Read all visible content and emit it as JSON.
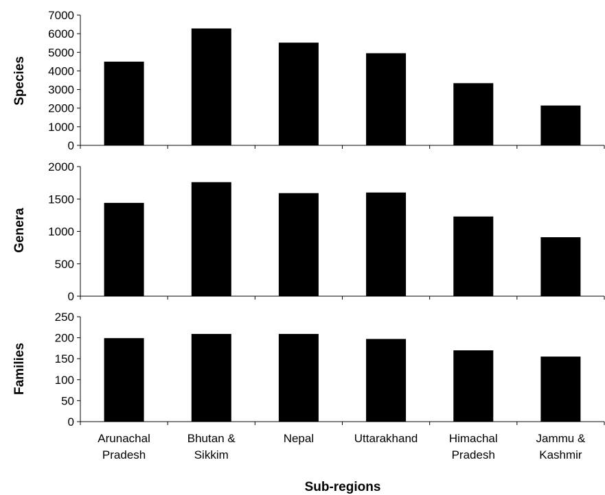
{
  "chart_data": {
    "type": "bar",
    "categories": [
      [
        "Arunachal",
        "Pradesh"
      ],
      [
        "Bhutan &",
        "Sikkim"
      ],
      [
        "Nepal"
      ],
      [
        "Uttarakhand"
      ],
      [
        "Himachal",
        "Pradesh"
      ],
      [
        "Jammu &",
        "Kashmir"
      ]
    ],
    "xlabel": "Sub-regions",
    "bar_color": "#000000",
    "panels": [
      {
        "ylabel": "Species",
        "ylim": [
          0,
          7000
        ],
        "yticks": [
          "0",
          "1000",
          "2000",
          "3000",
          "4000",
          "5000",
          "6000",
          "7000"
        ],
        "values": [
          4500,
          6280,
          5520,
          4950,
          3340,
          2140
        ]
      },
      {
        "ylabel": "Genera",
        "ylim": [
          0,
          2000
        ],
        "yticks": [
          "0",
          "500",
          "1000",
          "1500",
          "2000"
        ],
        "values": [
          1440,
          1760,
          1590,
          1600,
          1230,
          910
        ]
      },
      {
        "ylabel": "Families",
        "ylim": [
          0,
          250
        ],
        "yticks": [
          "0",
          "50",
          "100",
          "150",
          "200",
          "250"
        ],
        "values": [
          199,
          209,
          209,
          197,
          170,
          155
        ]
      }
    ]
  }
}
